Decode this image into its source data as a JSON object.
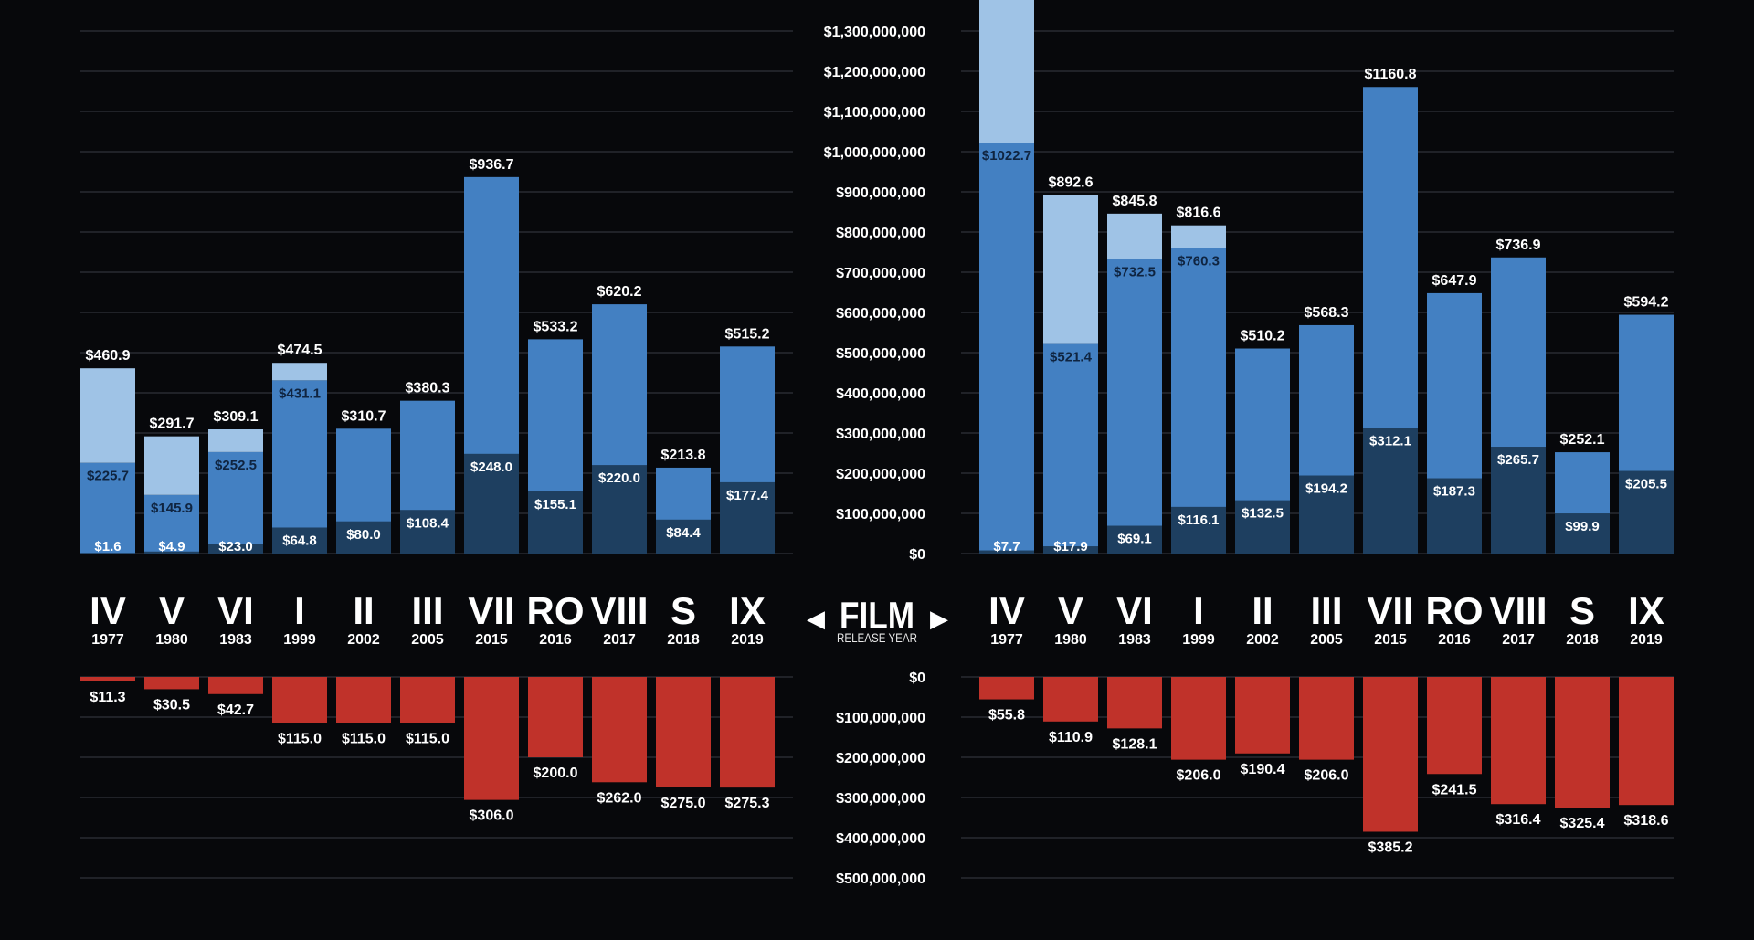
{
  "colors": {
    "background": "#07080b",
    "grid": "#3a3d44",
    "dark_blue": "#1e3f60",
    "mid_blue": "#4380c2",
    "light_blue": "#9fc3e6",
    "red": "#c0322a",
    "text": "#ffffff",
    "subtext": "#e6e6e6"
  },
  "center": {
    "title": "FILM",
    "subtitle": "RELEASE YEAR",
    "left_arrow": "◀",
    "right_arrow": "▶"
  },
  "films": [
    {
      "label": "IV",
      "year": "1977"
    },
    {
      "label": "V",
      "year": "1980"
    },
    {
      "label": "VI",
      "year": "1983"
    },
    {
      "label": "I",
      "year": "1999"
    },
    {
      "label": "II",
      "year": "2002"
    },
    {
      "label": "III",
      "year": "2005"
    },
    {
      "label": "VII",
      "year": "2015"
    },
    {
      "label": "RO",
      "year": "2016"
    },
    {
      "label": "VIII",
      "year": "2017"
    },
    {
      "label": "S",
      "year": "2018"
    },
    {
      "label": "IX",
      "year": "2019"
    }
  ],
  "chart_data": [
    {
      "type": "bar",
      "stacked": true,
      "categories": [
        "IV",
        "V",
        "VI",
        "I",
        "II",
        "III",
        "VII",
        "RO",
        "VIII",
        "S",
        "IX"
      ],
      "ylim": [
        0,
        1400000000
      ],
      "segments": [
        {
          "values": [
            1.6,
            4.9,
            23.0,
            64.8,
            80.0,
            108.4,
            248.0,
            155.1,
            220.0,
            84.4,
            177.4
          ],
          "labels": [
            "$1.6",
            "$4.9",
            "$23.0",
            "$64.8",
            "$80.0",
            "$108.4",
            "$248.0",
            "$155.1",
            "$220.0",
            "$84.4",
            "$177.4"
          ]
        },
        {
          "values": [
            225.7,
            145.9,
            252.5,
            431.1,
            310.7,
            380.3,
            936.7,
            533.2,
            620.2,
            213.8,
            515.2
          ],
          "labels": [
            "$225.7",
            "$145.9",
            "$252.5",
            "$431.1",
            "",
            "",
            "",
            "",
            "",
            "",
            ""
          ]
        },
        {
          "values": [
            460.9,
            291.7,
            309.1,
            474.5,
            310.7,
            380.3,
            936.7,
            533.2,
            620.2,
            213.8,
            515.2
          ]
        }
      ],
      "totals": [
        "$460.9",
        "$291.7",
        "$309.1",
        "$474.5",
        "$310.7",
        "$380.3",
        "$936.7",
        "$533.2",
        "$620.2",
        "$213.8",
        "$515.2"
      ]
    },
    {
      "type": "bar",
      "stacked": true,
      "categories": [
        "IV",
        "V",
        "VI",
        "I",
        "II",
        "III",
        "VII",
        "RO",
        "VIII",
        "S",
        "IX"
      ],
      "ylim": [
        0,
        1400000000
      ],
      "segments": [
        {
          "values": [
            7.7,
            17.9,
            69.1,
            116.1,
            132.5,
            194.2,
            312.1,
            187.3,
            265.7,
            99.9,
            205.5
          ],
          "labels": [
            "$7.7",
            "$17.9",
            "$69.1",
            "$116.1",
            "$132.5",
            "$194.2",
            "$312.1",
            "$187.3",
            "$265.7",
            "$99.9",
            "$205.5"
          ]
        },
        {
          "values": [
            1022.7,
            521.4,
            732.5,
            760.3,
            510.2,
            568.3,
            1160.8,
            647.9,
            736.9,
            252.1,
            594.2
          ],
          "labels": [
            "$1022.7",
            "$521.4",
            "$732.5",
            "$760.3",
            "",
            "",
            "",
            "",
            "",
            "",
            ""
          ]
        },
        {
          "values": [
            1400.0,
            892.6,
            845.8,
            816.6,
            510.2,
            568.3,
            1160.8,
            647.9,
            736.9,
            252.1,
            594.2
          ]
        }
      ],
      "totals": [
        "",
        "$892.6",
        "$845.8",
        "$816.6",
        "$510.2",
        "$568.3",
        "$1160.8",
        "$647.9",
        "$736.9",
        "$252.1",
        "$594.2"
      ]
    },
    {
      "type": "bar",
      "categories": [
        "IV",
        "V",
        "VI",
        "I",
        "II",
        "III",
        "VII",
        "RO",
        "VIII",
        "S",
        "IX"
      ],
      "values": [
        11.3,
        30.5,
        42.7,
        115.0,
        115.0,
        115.0,
        306.0,
        200.0,
        262.0,
        275.0,
        275.3
      ],
      "labels": [
        "$11.3",
        "$30.5",
        "$42.7",
        "$115.0",
        "$115.0",
        "$115.0",
        "$306.0",
        "$200.0",
        "$262.0",
        "$275.0",
        "$275.3"
      ],
      "ylim": [
        0,
        500000000
      ]
    },
    {
      "type": "bar",
      "categories": [
        "IV",
        "V",
        "VI",
        "I",
        "II",
        "III",
        "VII",
        "RO",
        "VIII",
        "S",
        "IX"
      ],
      "values": [
        55.8,
        110.9,
        128.1,
        206.0,
        190.4,
        206.0,
        385.2,
        241.5,
        316.4,
        325.4,
        318.6
      ],
      "labels": [
        "$55.8",
        "$110.9",
        "$128.1",
        "$206.0",
        "$190.4",
        "$206.0",
        "$385.2",
        "$241.5",
        "$316.4",
        "$325.4",
        "$318.6"
      ],
      "ylim": [
        0,
        500000000
      ]
    }
  ],
  "top_axis_ticks": [
    "$0",
    "$100,000,000",
    "$200,000,000",
    "$300,000,000",
    "$400,000,000",
    "$500,000,000",
    "$600,000,000",
    "$700,000,000",
    "$800,000,000",
    "$900,000,000",
    "$1,000,000,000",
    "$1,100,000,000",
    "$1,200,000,000",
    "$1,300,000,000"
  ],
  "bottom_axis_ticks": [
    "$0",
    "$100,000,000",
    "$200,000,000",
    "$300,000,000",
    "$400,000,000",
    "$500,000,000"
  ]
}
